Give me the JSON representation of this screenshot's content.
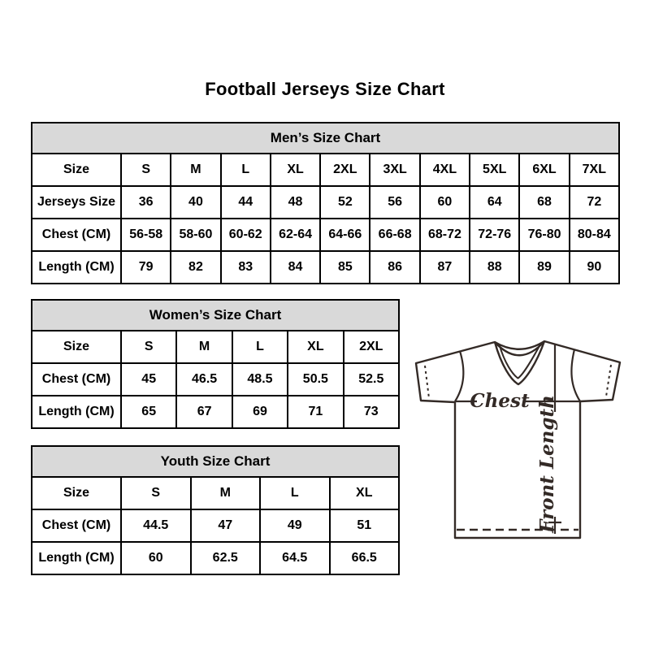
{
  "page": {
    "title": "Football Jerseys Size Chart"
  },
  "colors": {
    "table_border": "#000000",
    "table_header_bg": "#d9d9d9",
    "text": "#000000",
    "jersey_stroke": "#332a26"
  },
  "tables": {
    "mens": {
      "title": "Men’s Size Chart",
      "rows": [
        {
          "label": "Size",
          "cells": [
            "S",
            "M",
            "L",
            "XL",
            "2XL",
            "3XL",
            "4XL",
            "5XL",
            "6XL",
            "7XL"
          ]
        },
        {
          "label": "Jerseys Size",
          "cells": [
            "36",
            "40",
            "44",
            "48",
            "52",
            "56",
            "60",
            "64",
            "68",
            "72"
          ]
        },
        {
          "label": "Chest (CM)",
          "cells": [
            "56-58",
            "58-60",
            "60-62",
            "62-64",
            "64-66",
            "66-68",
            "68-72",
            "72-76",
            "76-80",
            "80-84"
          ]
        },
        {
          "label": "Length (CM)",
          "cells": [
            "79",
            "82",
            "83",
            "84",
            "85",
            "86",
            "87",
            "88",
            "89",
            "90"
          ]
        }
      ]
    },
    "womens": {
      "title": "Women’s Size Chart",
      "rows": [
        {
          "label": "Size",
          "cells": [
            "S",
            "M",
            "L",
            "XL",
            "2XL"
          ]
        },
        {
          "label": "Chest (CM)",
          "cells": [
            "45",
            "46.5",
            "48.5",
            "50.5",
            "52.5"
          ]
        },
        {
          "label": "Length (CM)",
          "cells": [
            "65",
            "67",
            "69",
            "71",
            "73"
          ]
        }
      ]
    },
    "youth": {
      "title": "Youth Size Chart",
      "rows": [
        {
          "label": "Size",
          "cells": [
            "S",
            "M",
            "L",
            "XL"
          ]
        },
        {
          "label": "Chest (CM)",
          "cells": [
            "44.5",
            "47",
            "49",
            "51"
          ]
        },
        {
          "label": "Length (CM)",
          "cells": [
            "60",
            "62.5",
            "64.5",
            "66.5"
          ]
        }
      ]
    }
  },
  "diagram": {
    "chest_label": "Chest",
    "front_length_label": "Front Length"
  }
}
